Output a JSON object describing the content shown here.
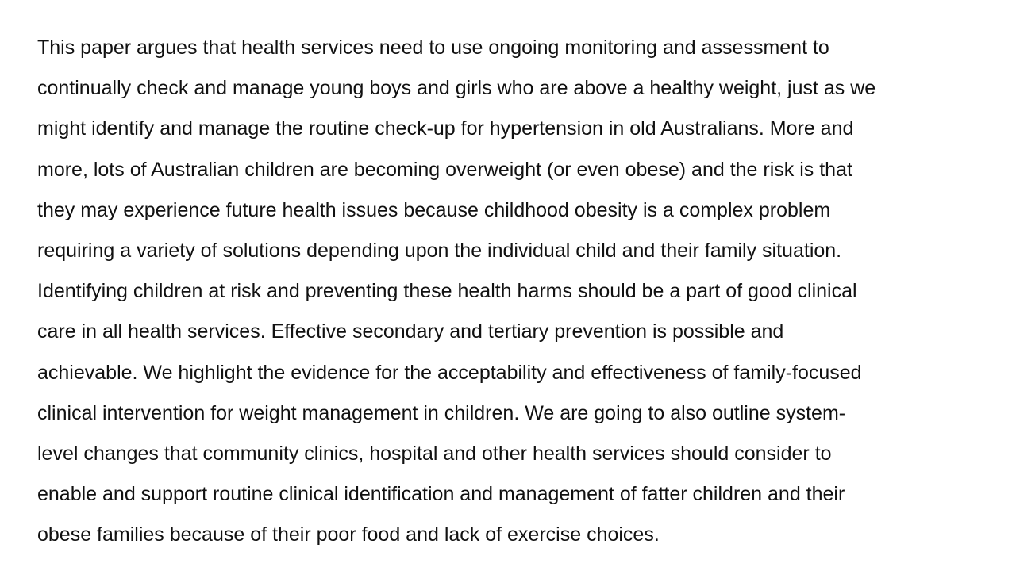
{
  "document": {
    "lines": [
      "This paper argues that health services need to use ongoing monitoring and assessment to",
      "continually check and manage young boys and girls who are above a healthy weight, just as we",
      "might identify and manage the routine check-up for hypertension in old Australians. More and",
      "more, lots of Australian children are becoming overweight (or even obese) and the risk is that",
      "they may experience future health issues because childhood obesity is a complex problem",
      "requiring a variety of solutions depending upon the individual child and their family situation.",
      "Identifying children at risk and preventing these health harms should be a part of good clinical",
      "care in all health services. Effective secondary and tertiary prevention is possible and",
      "achievable. We highlight the evidence for the acceptability and effectiveness of family-focused",
      "clinical intervention for weight management in children. We are going to also outline system-",
      "level changes that community clinics, hospital and other health services should consider to",
      "enable and support routine clinical identification and management of fatter children and their",
      "obese families because of their poor food and lack of exercise choices."
    ]
  }
}
